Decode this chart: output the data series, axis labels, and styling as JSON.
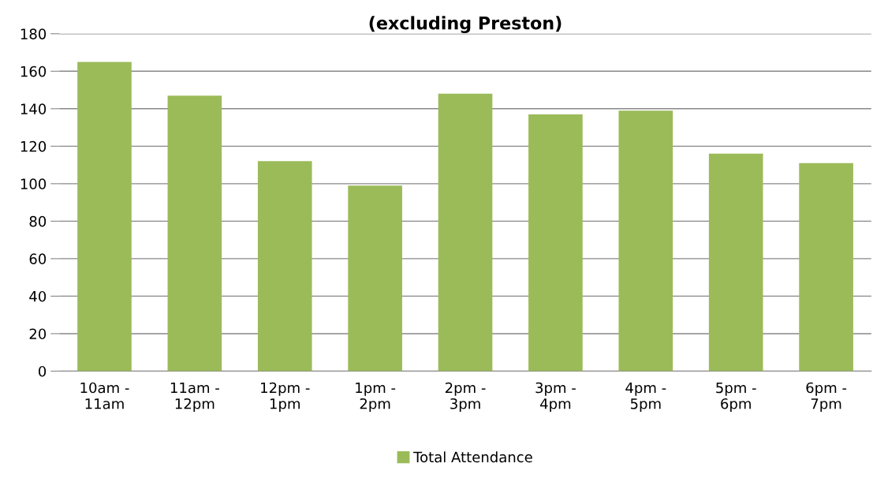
{
  "chart_data": {
    "type": "bar",
    "title": "(excluding Preston)",
    "categories": [
      "10am -\n11am",
      "11am -\n12pm",
      "12pm -\n1pm",
      "1pm -\n2pm",
      "2pm -\n3pm",
      "3pm -\n4pm",
      "4pm -\n5pm",
      "5pm -\n6pm",
      "6pm -\n7pm"
    ],
    "series": [
      {
        "name": "Total Attendance",
        "color": "#9bbb59",
        "values": [
          165,
          147,
          112,
          99,
          148,
          137,
          139,
          116,
          111
        ]
      }
    ],
    "ylim": [
      0,
      180
    ],
    "yticks": [
      0,
      20,
      40,
      60,
      80,
      100,
      120,
      140,
      160,
      180
    ],
    "grid": "y",
    "legend": "bottom"
  }
}
